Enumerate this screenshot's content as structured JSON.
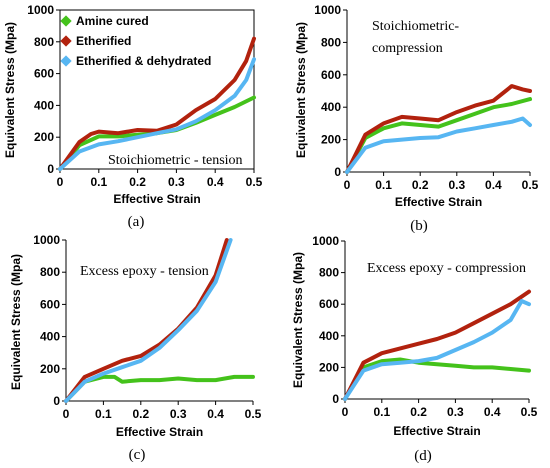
{
  "colors": {
    "amine": "#44c21b",
    "etherified": "#b2220e",
    "dehydrated": "#57b6f2"
  },
  "legend": [
    "Amine cured",
    "Etherified",
    "Etherified & dehydrated"
  ],
  "panel_labels": [
    "(a)",
    "(b)",
    "(c)",
    "(d)"
  ],
  "chart_data": [
    {
      "type": "line",
      "annotation": "Stoichiometric - tension",
      "xlabel": "Effective Strain",
      "ylabel": "Equivalent Stress (Mpa)",
      "xlim": [
        0,
        0.5
      ],
      "ylim": [
        0,
        1000
      ],
      "xticks": [
        "0",
        "0.1",
        "0.2",
        "0.3",
        "0.4",
        "0.5"
      ],
      "yticks": [
        "0",
        "200",
        "400",
        "600",
        "800",
        "1000"
      ],
      "legend_position": "top-left",
      "series": [
        {
          "name": "Amine cured",
          "color_key": "amine",
          "x": [
            0,
            0.05,
            0.1,
            0.15,
            0.2,
            0.25,
            0.3,
            0.35,
            0.4,
            0.45,
            0.5
          ],
          "y": [
            0,
            150,
            205,
            205,
            215,
            225,
            245,
            290,
            340,
            390,
            450
          ]
        },
        {
          "name": "Etherified",
          "color_key": "etherified",
          "x": [
            0,
            0.05,
            0.08,
            0.1,
            0.15,
            0.2,
            0.25,
            0.3,
            0.35,
            0.4,
            0.45,
            0.48,
            0.5
          ],
          "y": [
            0,
            170,
            220,
            235,
            225,
            245,
            240,
            280,
            370,
            440,
            560,
            680,
            820
          ]
        },
        {
          "name": "Etherified & dehydrated",
          "color_key": "dehydrated",
          "x": [
            0,
            0.05,
            0.1,
            0.15,
            0.2,
            0.25,
            0.3,
            0.35,
            0.4,
            0.45,
            0.48,
            0.5
          ],
          "y": [
            0,
            110,
            155,
            175,
            200,
            225,
            250,
            300,
            370,
            460,
            560,
            690
          ]
        }
      ]
    },
    {
      "type": "line",
      "annotation": "Stoichiometric-compression",
      "xlabel": "Effective Strain",
      "ylabel": "Equivalent Stress (Mpa)",
      "xlim": [
        0,
        0.5
      ],
      "ylim": [
        0,
        1000
      ],
      "xticks": [
        "0",
        "0.1",
        "0.2",
        "0.3",
        "0.4",
        "0.5"
      ],
      "yticks": [
        "0",
        "200",
        "400",
        "600",
        "800",
        "1000"
      ],
      "series": [
        {
          "name": "Amine cured",
          "color_key": "amine",
          "x": [
            0,
            0.05,
            0.1,
            0.15,
            0.2,
            0.25,
            0.3,
            0.35,
            0.4,
            0.45,
            0.5
          ],
          "y": [
            0,
            210,
            270,
            300,
            290,
            280,
            320,
            360,
            400,
            420,
            450
          ]
        },
        {
          "name": "Etherified",
          "color_key": "etherified",
          "x": [
            0,
            0.05,
            0.1,
            0.15,
            0.2,
            0.25,
            0.3,
            0.35,
            0.4,
            0.45,
            0.48,
            0.5
          ],
          "y": [
            0,
            230,
            300,
            340,
            330,
            320,
            370,
            410,
            440,
            530,
            510,
            500
          ]
        },
        {
          "name": "Etherified & dehydrated",
          "color_key": "dehydrated",
          "x": [
            0,
            0.05,
            0.1,
            0.15,
            0.2,
            0.25,
            0.3,
            0.35,
            0.4,
            0.45,
            0.48,
            0.5
          ],
          "y": [
            0,
            150,
            190,
            200,
            210,
            215,
            250,
            270,
            290,
            310,
            330,
            290
          ]
        }
      ]
    },
    {
      "type": "line",
      "annotation": "Excess epoxy - tension",
      "xlabel": "Effective Strain",
      "ylabel": "Equivalent Stress (Mpa)",
      "xlim": [
        0,
        0.5
      ],
      "ylim": [
        0,
        1000
      ],
      "xticks": [
        "0",
        "0.1",
        "0.2",
        "0.3",
        "0.4",
        "0.5"
      ],
      "yticks": [
        "0",
        "200",
        "400",
        "600",
        "800",
        "1000"
      ],
      "series": [
        {
          "name": "Amine cured",
          "color_key": "amine",
          "x": [
            0,
            0.05,
            0.1,
            0.13,
            0.15,
            0.2,
            0.25,
            0.3,
            0.35,
            0.4,
            0.45,
            0.5
          ],
          "y": [
            0,
            120,
            150,
            150,
            120,
            130,
            130,
            140,
            130,
            130,
            150,
            150
          ]
        },
        {
          "name": "Etherified",
          "color_key": "etherified",
          "x": [
            0,
            0.05,
            0.1,
            0.15,
            0.2,
            0.25,
            0.3,
            0.35,
            0.4,
            0.43
          ],
          "y": [
            0,
            150,
            200,
            250,
            280,
            350,
            450,
            580,
            780,
            1000
          ]
        },
        {
          "name": "Etherified & dehydrated",
          "color_key": "dehydrated",
          "x": [
            0,
            0.05,
            0.1,
            0.15,
            0.2,
            0.25,
            0.3,
            0.35,
            0.4,
            0.44
          ],
          "y": [
            0,
            120,
            170,
            210,
            250,
            330,
            440,
            560,
            740,
            1000
          ]
        }
      ]
    },
    {
      "type": "line",
      "annotation": "Excess epoxy - compression",
      "xlabel": "Effective Strain",
      "ylabel": "Equivalent Stress (Mpa)",
      "xlim": [
        0,
        0.5
      ],
      "ylim": [
        0,
        1000
      ],
      "xticks": [
        "0",
        "0.1",
        "0.2",
        "0.3",
        "0.4",
        "0.5"
      ],
      "yticks": [
        "0",
        "200",
        "400",
        "600",
        "800",
        "1000"
      ],
      "series": [
        {
          "name": "Amine cured",
          "color_key": "amine",
          "x": [
            0,
            0.05,
            0.1,
            0.15,
            0.2,
            0.25,
            0.3,
            0.35,
            0.4,
            0.45,
            0.5
          ],
          "y": [
            0,
            200,
            240,
            250,
            230,
            220,
            210,
            200,
            200,
            190,
            180
          ]
        },
        {
          "name": "Etherified",
          "color_key": "etherified",
          "x": [
            0,
            0.05,
            0.1,
            0.15,
            0.2,
            0.25,
            0.3,
            0.35,
            0.4,
            0.45,
            0.5
          ],
          "y": [
            0,
            230,
            290,
            320,
            350,
            380,
            420,
            480,
            540,
            600,
            680
          ]
        },
        {
          "name": "Etherified & dehydrated",
          "color_key": "dehydrated",
          "x": [
            0,
            0.05,
            0.1,
            0.15,
            0.2,
            0.25,
            0.3,
            0.35,
            0.4,
            0.45,
            0.48,
            0.5
          ],
          "y": [
            0,
            180,
            220,
            230,
            240,
            260,
            310,
            360,
            420,
            500,
            620,
            600
          ]
        }
      ]
    }
  ]
}
